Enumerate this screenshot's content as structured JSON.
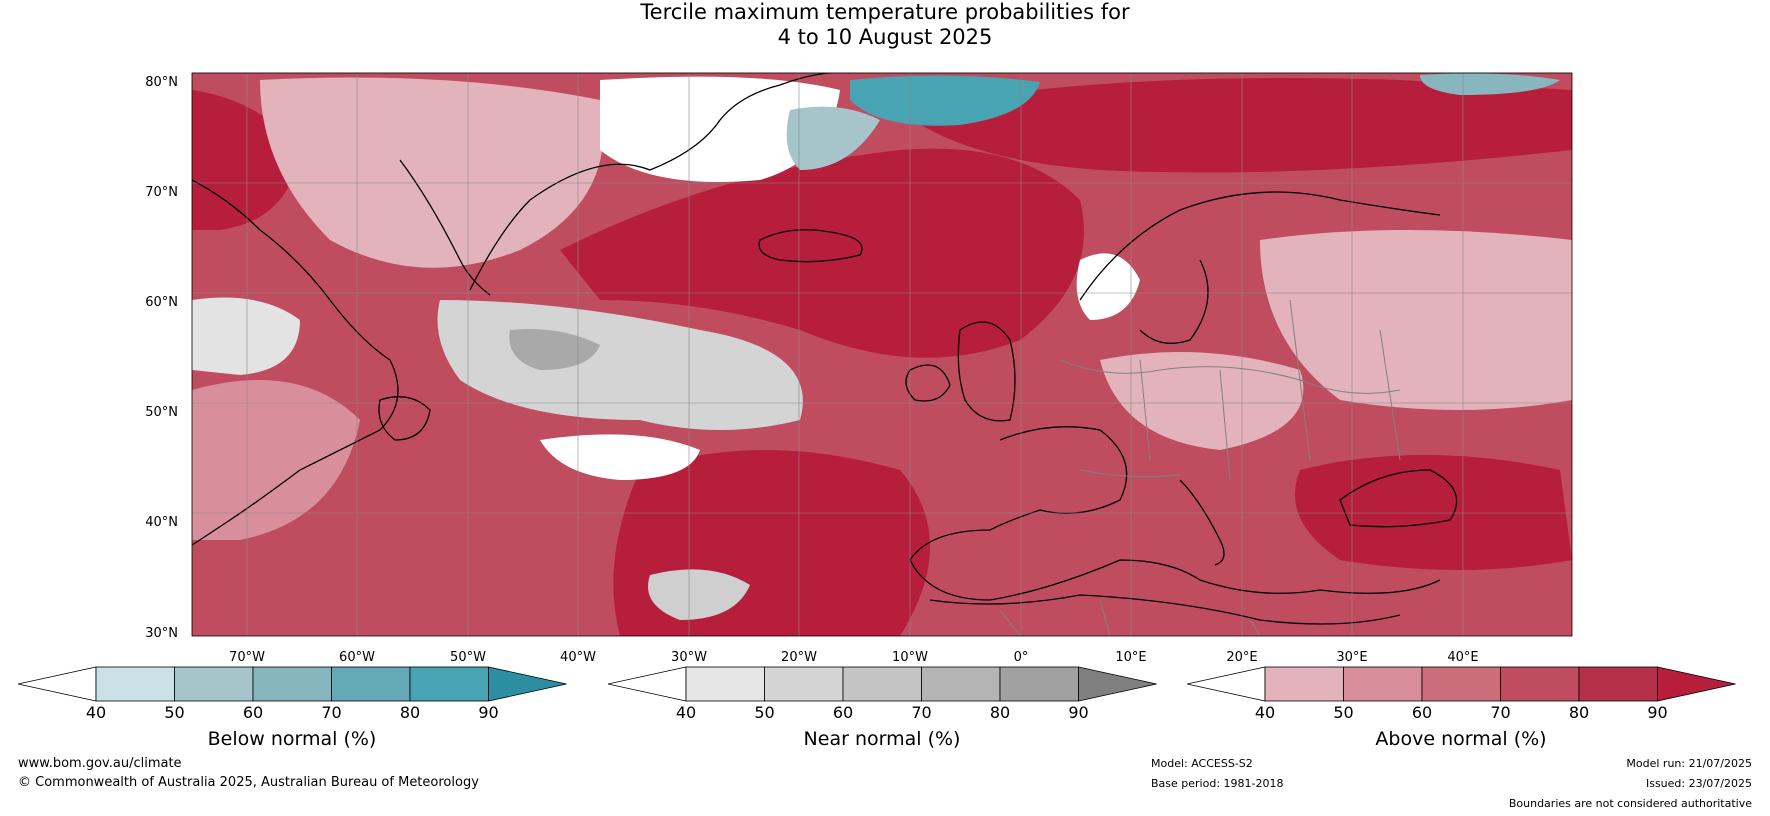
{
  "title": {
    "line1": "Tercile maximum temperature probabilities for",
    "line2": "4 to 10 August 2025"
  },
  "map": {
    "lat_labels": [
      "80°N",
      "70°N",
      "60°N",
      "50°N",
      "40°N",
      "30°N"
    ],
    "lon_labels": [
      "70°W",
      "60°W",
      "50°W",
      "40°W",
      "30°W",
      "20°W",
      "10°W",
      "0°",
      "10°E",
      "20°E",
      "30°E",
      "40°E"
    ],
    "lat_range": [
      30,
      80
    ],
    "colors": {
      "above_dark": "#b61e3c",
      "above_mid": "#cc5f72",
      "above_light": "#e3b3bb",
      "near_grey": "#c9c9c9",
      "below_teal": "#4aa3b3",
      "coast": "#000000",
      "border": "#808080",
      "graticule": "#888888"
    }
  },
  "colorbars": [
    {
      "label": "Below normal (%)",
      "ticks": [
        "40",
        "50",
        "60",
        "70",
        "80",
        "90"
      ],
      "colors": [
        "#ffffff",
        "#c9e1e7",
        "#a6c5cb",
        "#87b6bf",
        "#65a8b6",
        "#48a3b3",
        "#2b8fa1"
      ]
    },
    {
      "label": "Near normal (%)",
      "ticks": [
        "40",
        "50",
        "60",
        "70",
        "80",
        "90"
      ],
      "colors": [
        "#ffffff",
        "#e6e6e6",
        "#d4d4d4",
        "#c4c4c4",
        "#b4b4b4",
        "#a1a1a1",
        "#808080"
      ]
    },
    {
      "label": "Above normal (%)",
      "ticks": [
        "40",
        "50",
        "60",
        "70",
        "80",
        "90"
      ],
      "colors": [
        "#ffffff",
        "#e3b3bb",
        "#d88f9b",
        "#cc6d7b",
        "#c04d5f",
        "#b52f48",
        "#b61e3c"
      ]
    }
  ],
  "footer": {
    "website": "www.bom.gov.au/climate",
    "copyright": "© Commonwealth of Australia 2025, Australian Bureau of Meteorology",
    "model": "Model: ACCESS-S2",
    "base_period": "Base period: 1981-2018",
    "model_run": "Model run: 21/07/2025",
    "issued": "Issued: 23/07/2025",
    "disclaimer": "Boundaries are not considered authoritative"
  }
}
